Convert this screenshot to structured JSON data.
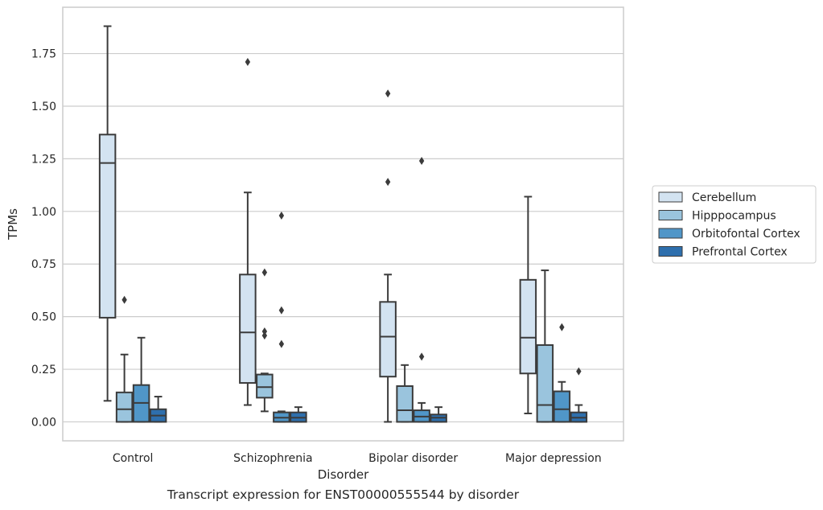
{
  "caption": "Transcript expression for ENST00000555544 by disorder",
  "chart_data": {
    "type": "boxplot",
    "xlabel": "Disorder",
    "ylabel": "TPMs",
    "ylim": [
      -0.09,
      1.97
    ],
    "yticks": [
      0.0,
      0.25,
      0.5,
      0.75,
      1.0,
      1.25,
      1.5,
      1.75
    ],
    "ytick_labels": [
      "0.00",
      "0.25",
      "0.50",
      "0.75",
      "1.00",
      "1.25",
      "1.50",
      "1.75"
    ],
    "grid": "horizontal",
    "legend_position": "right",
    "categories": [
      "Control",
      "Schizophrenia",
      "Bipolar disorder",
      "Major depression"
    ],
    "series": [
      {
        "name": "Cerebellum",
        "color": "#d3e3f1",
        "boxes": [
          {
            "whislo": 0.1,
            "q1": 0.495,
            "med": 1.23,
            "q3": 1.365,
            "whishi": 1.88,
            "fliers": []
          },
          {
            "whislo": 0.08,
            "q1": 0.185,
            "med": 0.425,
            "q3": 0.7,
            "whishi": 1.09,
            "fliers": [
              1.71
            ]
          },
          {
            "whislo": 0.0,
            "q1": 0.215,
            "med": 0.405,
            "q3": 0.57,
            "whishi": 0.7,
            "fliers": [
              1.14,
              1.56
            ]
          },
          {
            "whislo": 0.04,
            "q1": 0.23,
            "med": 0.4,
            "q3": 0.675,
            "whishi": 1.07,
            "fliers": []
          }
        ]
      },
      {
        "name": "Hipppocampus",
        "color": "#9ac4dd",
        "boxes": [
          {
            "whislo": 0.0,
            "q1": 0.0,
            "med": 0.06,
            "q3": 0.14,
            "whishi": 0.32,
            "fliers": [
              0.58
            ]
          },
          {
            "whislo": 0.05,
            "q1": 0.115,
            "med": 0.165,
            "q3": 0.225,
            "whishi": 0.23,
            "fliers": [
              0.41,
              0.43,
              0.71
            ]
          },
          {
            "whislo": 0.0,
            "q1": 0.0,
            "med": 0.055,
            "q3": 0.17,
            "whishi": 0.27,
            "fliers": []
          },
          {
            "whislo": 0.0,
            "q1": 0.0,
            "med": 0.08,
            "q3": 0.365,
            "whishi": 0.72,
            "fliers": []
          }
        ]
      },
      {
        "name": "Orbitofontal Cortex",
        "color": "#5096c8",
        "boxes": [
          {
            "whislo": 0.0,
            "q1": 0.0,
            "med": 0.09,
            "q3": 0.175,
            "whishi": 0.4,
            "fliers": []
          },
          {
            "whislo": 0.0,
            "q1": 0.0,
            "med": 0.02,
            "q3": 0.045,
            "whishi": 0.05,
            "fliers": [
              0.37,
              0.53,
              0.98
            ]
          },
          {
            "whislo": 0.0,
            "q1": 0.0,
            "med": 0.025,
            "q3": 0.055,
            "whishi": 0.09,
            "fliers": [
              0.31,
              1.24
            ]
          },
          {
            "whislo": 0.0,
            "q1": 0.0,
            "med": 0.06,
            "q3": 0.145,
            "whishi": 0.19,
            "fliers": [
              0.45
            ]
          }
        ]
      },
      {
        "name": "Prefrontal Cortex",
        "color": "#2e6fad",
        "boxes": [
          {
            "whislo": 0.0,
            "q1": 0.0,
            "med": 0.03,
            "q3": 0.06,
            "whishi": 0.12,
            "fliers": []
          },
          {
            "whislo": 0.0,
            "q1": 0.0,
            "med": 0.02,
            "q3": 0.045,
            "whishi": 0.07,
            "fliers": []
          },
          {
            "whislo": 0.0,
            "q1": 0.0,
            "med": 0.02,
            "q3": 0.035,
            "whishi": 0.07,
            "fliers": []
          },
          {
            "whislo": 0.0,
            "q1": 0.0,
            "med": 0.02,
            "q3": 0.045,
            "whishi": 0.08,
            "fliers": [
              0.24
            ]
          }
        ]
      }
    ]
  }
}
